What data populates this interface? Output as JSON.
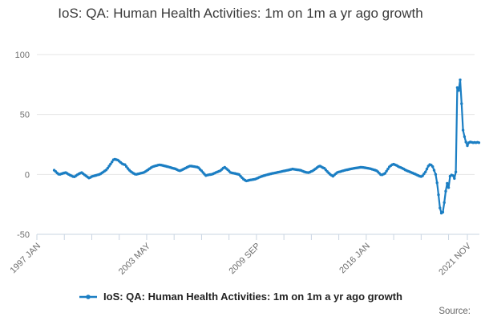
{
  "header": {
    "title": "IoS: QA: Human Health Activities: 1m on 1m a yr ago growth"
  },
  "legend": {
    "marker": "line-with-dot-icon",
    "label": "IoS: QA: Human Health Activities: 1m on 1m a yr ago growth"
  },
  "footer": {
    "source_label": "Source:"
  },
  "colors": {
    "series_line": "#1b7ec3",
    "gridline": "#e6e6e6",
    "axis_line": "#c9d4e2",
    "axis_label": "#6e6e6e",
    "title_text": "#3a3a3a",
    "legend_text": "#222222",
    "source_text": "#666666"
  },
  "chart_data": {
    "type": "line",
    "title": "IoS: QA: Human Health Activities: 1m on 1m a yr ago growth",
    "series": [
      {
        "name": "IoS: QA: Human Health Activities: 1m on 1m a yr ago growth",
        "frequency": "monthly",
        "first_value_month": "1998-01",
        "values": [
          3.5,
          2.4,
          1.2,
          0.2,
          0.1,
          0.5,
          0.9,
          1.2,
          1.5,
          0.8,
          0,
          -0.6,
          -1.2,
          -1.8,
          -2,
          -1.2,
          -0.3,
          0.4,
          1,
          1.5,
          0.6,
          -0.4,
          -1.2,
          -2.1,
          -3,
          -2.5,
          -1.8,
          -1.4,
          -1.1,
          -0.8,
          -0.4,
          -0.1,
          0.4,
          1.2,
          2,
          2.9,
          3.7,
          5.2,
          6.9,
          8.6,
          10.4,
          12.2,
          12.6,
          12.3,
          12,
          11,
          10,
          9,
          8.4,
          8.1,
          6.5,
          4.9,
          3.6,
          2.4,
          1.6,
          0.8,
          0.2,
          0.1,
          0.4,
          0.7,
          1,
          1.3,
          1.6,
          2.3,
          3.1,
          3.9,
          4.8,
          5.6,
          6.3,
          6.7,
          7.1,
          7.4,
          7.8,
          8,
          7.8,
          7.5,
          7.2,
          6.9,
          6.6,
          6.3,
          6,
          5.6,
          5.2,
          4.9,
          4.6,
          4,
          3.4,
          3,
          3.5,
          4.1,
          4.7,
          5.3,
          5.9,
          6.5,
          7,
          6.9,
          6.7,
          6.5,
          6.3,
          6.1,
          5.5,
          4.2,
          3,
          1.6,
          0.2,
          -1,
          -0.6,
          -0.3,
          -0.1,
          0,
          0.5,
          1,
          1.6,
          2.1,
          2.6,
          3.1,
          4.2,
          5.3,
          6,
          5,
          4,
          2.8,
          1.6,
          1.3,
          1,
          0.8,
          0.5,
          0.2,
          -0.1,
          -1.5,
          -2.7,
          -3.9,
          -4.8,
          -5.4,
          -5.2,
          -4.8,
          -4.6,
          -4.4,
          -4.2,
          -4,
          -3.5,
          -3,
          -2.4,
          -1.9,
          -1.5,
          -1.1,
          -0.8,
          -0.4,
          -0.1,
          0.2,
          0.5,
          0.8,
          1,
          1.3,
          1.5,
          1.8,
          2,
          2.3,
          2.6,
          2.8,
          3.1,
          3.4,
          3.6,
          3.9,
          4.2,
          4.5,
          4.3,
          4.1,
          3.9,
          3.8,
          3.6,
          3.3,
          2.7,
          2.2,
          1.8,
          1.6,
          1.5,
          1.9,
          2.5,
          3,
          3.9,
          4.8,
          5.7,
          6.6,
          7,
          6.3,
          5.6,
          5.2,
          3.8,
          2.4,
          1.2,
          0.1,
          -0.8,
          -1.5,
          -0.4,
          0.7,
          1.6,
          2,
          2.3,
          2.7,
          3,
          3.4,
          3.7,
          3.9,
          4.2,
          4.5,
          4.7,
          5,
          5.2,
          5.4,
          5.5,
          5.7,
          5.9,
          5.9,
          5.8,
          5.6,
          5.4,
          5.2,
          5,
          4.7,
          4.3,
          4,
          3.6,
          3.2,
          2.2,
          1,
          -0.2,
          -0.3,
          0.3,
          0.9,
          2.7,
          4.5,
          6.3,
          7.3,
          8.1,
          8.5,
          8,
          7.5,
          6.8,
          6.1,
          5.7,
          5.1,
          4.5,
          3.8,
          3.2,
          2.7,
          2.2,
          1.7,
          1.2,
          0.7,
          0.2,
          -0.4,
          -0.9,
          -1.5,
          -1.8,
          -1.2,
          0.5,
          2,
          4.5,
          7,
          8.2,
          7.8,
          6.5,
          3.5,
          0,
          -7,
          -17,
          -28,
          -32.3,
          -31.5,
          -23.5,
          -14,
          -7.5,
          -11,
          -1.5,
          -0.5,
          -1,
          -3.4,
          2,
          72.5,
          70,
          79,
          59,
          37,
          31.5,
          27,
          24,
          26.5,
          27,
          26.8,
          26.5,
          26.7,
          26.5,
          26.8,
          26.5
        ]
      }
    ],
    "y_axis": {
      "range": [
        -50,
        100
      ],
      "ticks": [
        100,
        50,
        0,
        -50
      ],
      "gridlines": true
    },
    "x_axis": {
      "axis_start_month": "1997-01",
      "tick_labels": [
        "1997 JAN",
        "2003 MAY",
        "2009 SEP",
        "2016 JAN",
        "2021 NOV"
      ],
      "tick_label_month_offsets": [
        0,
        76,
        152,
        228,
        298
      ],
      "minor_tick_every_months": 19,
      "minor_tick_count": 16,
      "label_rotation_deg": -45
    },
    "legend_position": "bottom"
  }
}
